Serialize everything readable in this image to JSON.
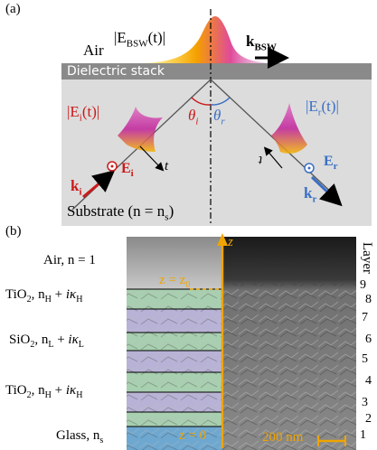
{
  "panel_a": {
    "tag": "(a)",
    "air": "Air",
    "e_bsw": "|E",
    "e_bsw_sub": "BSW",
    "e_bsw_tail": "(t)|",
    "k_bsw": "k",
    "k_bsw_sub": "BSW",
    "stack": "Dielectric stack",
    "e_i_abs": "|E",
    "e_i_abs_sub": "i",
    "e_i_abs_tail": "(t)|",
    "e_r_abs": "|E",
    "e_r_abs_sub": "r",
    "e_r_abs_tail": "(t)|",
    "theta_i": "θ",
    "theta_i_sub": "i",
    "theta_r": "θ",
    "theta_r_sub": "r",
    "e_i": "E",
    "e_i_sub": "i",
    "k_i": "k",
    "k_i_sub": "i",
    "e_r": "E",
    "e_r_sub": "r",
    "k_r": "k",
    "k_r_sub": "r",
    "t_left": "t",
    "t_right": "t",
    "substrate": "Substrate (n = n",
    "substrate_sub": "s",
    "substrate_tail": ")",
    "colors": {
      "red": "#cc1a1a",
      "blue": "#3a6fc4",
      "magenta": "#d02f9c",
      "gold": "#f3b400"
    }
  },
  "panel_b": {
    "tag": "(b)",
    "layers_title": "Layer",
    "air_label": "Air, n = 1",
    "tio2_label_top": "TiO",
    "tio2_label_top_tail": ", n",
    "sio2_label": "SiO",
    "sio2_label_tail": ", n",
    "tio2_label_bottom": "TiO",
    "glass_label": "Glass, n",
    "glass_sub": "s",
    "z_axis": "z",
    "z_top": "z = z",
    "z_top_sub": "0",
    "z_bottom": "z = 0",
    "scale": "200 nm",
    "layer_numbers": [
      "9",
      "8",
      "7",
      "6",
      "5",
      "4",
      "3",
      "2",
      "1"
    ]
  }
}
